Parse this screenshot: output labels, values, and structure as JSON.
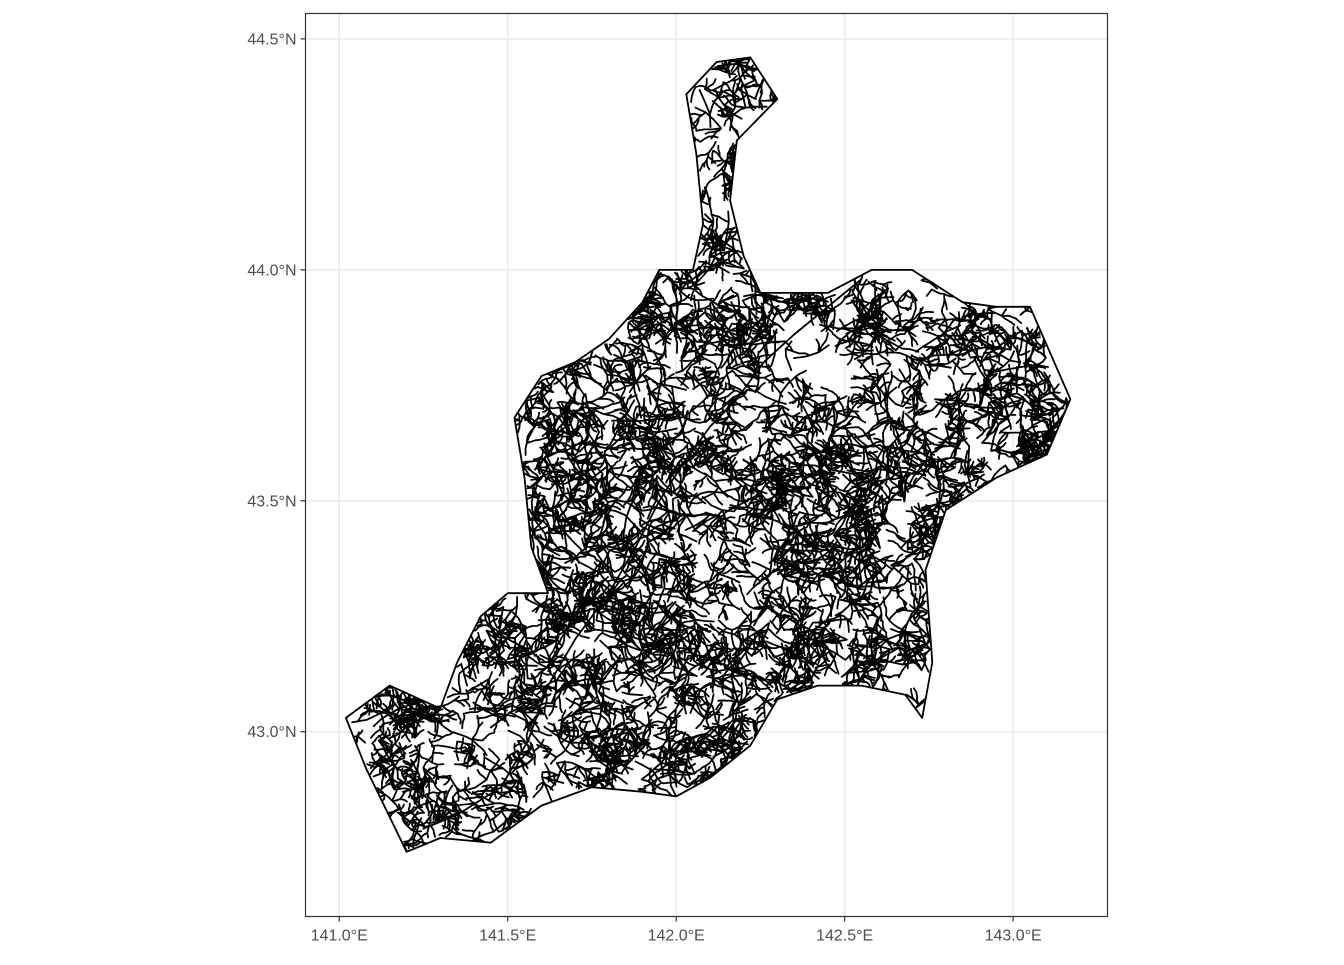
{
  "map": {
    "x_axis": {
      "range": [
        140.9,
        143.28
      ],
      "ticks": [
        {
          "value": 141.0,
          "label": "141.0°E"
        },
        {
          "value": 141.5,
          "label": "141.5°E"
        },
        {
          "value": 142.0,
          "label": "142.0°E"
        },
        {
          "value": 142.5,
          "label": "142.5°E"
        },
        {
          "value": 143.0,
          "label": "143.0°E"
        }
      ]
    },
    "y_axis": {
      "range": [
        42.6,
        44.555
      ],
      "ticks": [
        {
          "value": 43.0,
          "label": "43.0°N"
        },
        {
          "value": 43.5,
          "label": "43.5°N"
        },
        {
          "value": 44.0,
          "label": "44.0°N"
        },
        {
          "value": 44.5,
          "label": "44.5°N"
        }
      ]
    },
    "grid": true,
    "theme": "black-and-white",
    "colors": {
      "river": "#000000",
      "grid": "#ebebeb",
      "panel_border": "#333333",
      "tick_label": "#4d4d4d"
    },
    "river_network": {
      "main_stem": [
        [
          141.25,
          42.79
        ],
        [
          141.35,
          42.82
        ],
        [
          141.48,
          42.88
        ],
        [
          141.56,
          42.98
        ],
        [
          141.62,
          43.1
        ],
        [
          141.7,
          43.2
        ],
        [
          141.8,
          43.3
        ],
        [
          141.88,
          43.4
        ],
        [
          141.95,
          43.5
        ],
        [
          142.02,
          43.58
        ],
        [
          142.1,
          43.66
        ],
        [
          142.18,
          43.72
        ],
        [
          142.26,
          43.8
        ],
        [
          142.35,
          43.86
        ],
        [
          142.45,
          43.92
        ],
        [
          142.55,
          43.98
        ]
      ],
      "outline": [
        [
          141.2,
          42.74
        ],
        [
          141.3,
          42.77
        ],
        [
          141.45,
          42.76
        ],
        [
          141.6,
          42.84
        ],
        [
          141.75,
          42.88
        ],
        [
          141.9,
          42.87
        ],
        [
          142.0,
          42.86
        ],
        [
          142.1,
          42.9
        ],
        [
          142.22,
          42.97
        ],
        [
          142.3,
          43.07
        ],
        [
          142.42,
          43.1
        ],
        [
          142.55,
          43.1
        ],
        [
          142.68,
          43.08
        ],
        [
          142.73,
          43.03
        ],
        [
          142.76,
          43.15
        ],
        [
          142.74,
          43.35
        ],
        [
          142.8,
          43.48
        ],
        [
          142.95,
          43.55
        ],
        [
          143.1,
          43.6
        ],
        [
          143.17,
          43.72
        ],
        [
          143.05,
          43.92
        ],
        [
          142.95,
          43.92
        ],
        [
          142.85,
          43.93
        ],
        [
          142.7,
          44.0
        ],
        [
          142.58,
          44.0
        ],
        [
          142.45,
          43.95
        ],
        [
          142.35,
          43.95
        ],
        [
          142.25,
          43.95
        ],
        [
          142.2,
          44.03
        ],
        [
          142.16,
          44.15
        ],
        [
          142.18,
          44.28
        ],
        [
          142.3,
          44.37
        ],
        [
          142.22,
          44.46
        ],
        [
          142.12,
          44.45
        ],
        [
          142.03,
          44.38
        ],
        [
          142.06,
          44.25
        ],
        [
          142.08,
          44.1
        ],
        [
          142.05,
          44.0
        ],
        [
          141.95,
          44.0
        ],
        [
          141.9,
          43.93
        ],
        [
          141.8,
          43.85
        ],
        [
          141.7,
          43.8
        ],
        [
          141.6,
          43.77
        ],
        [
          141.52,
          43.68
        ],
        [
          141.55,
          43.55
        ],
        [
          141.57,
          43.4
        ],
        [
          141.62,
          43.3
        ],
        [
          141.5,
          43.3
        ],
        [
          141.42,
          43.25
        ],
        [
          141.35,
          43.15
        ],
        [
          141.3,
          43.05
        ],
        [
          141.15,
          43.1
        ],
        [
          141.02,
          43.03
        ],
        [
          141.08,
          42.92
        ],
        [
          141.2,
          42.74
        ]
      ]
    }
  }
}
